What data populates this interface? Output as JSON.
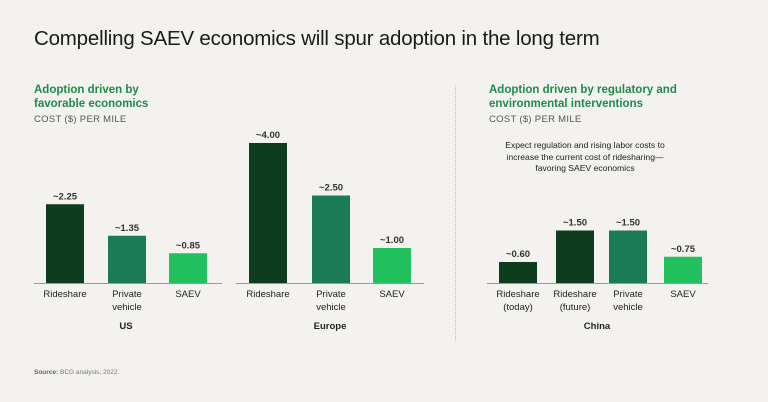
{
  "title": "Compelling SAEV economics will spur adoption in the long term",
  "panels": {
    "left": {
      "heading_line1": "Adoption driven by",
      "heading_line2": "favorable economics",
      "sublabel": "COST ($) PER MILE"
    },
    "right": {
      "heading_line1": "Adoption driven by regulatory and",
      "heading_line2": "environmental interventions",
      "sublabel": "COST ($) PER MILE",
      "annotation": "Expect regulation and rising labor costs to increase the current cost of ridesharing—favoring SAEV economics"
    }
  },
  "source_prefix": "Source:",
  "source_text": "BCG analysis, 2022.",
  "colors": {
    "dark_green": "#0e3c1e",
    "mid_green": "#1b7a57",
    "light_green": "#21c15d",
    "heading_green": "#1f8a4c"
  },
  "chart_data": [
    {
      "type": "bar",
      "group": "US",
      "ylabel": "COST ($) PER MILE",
      "categories": [
        [
          "Rideshare"
        ],
        [
          "Private",
          "vehicle"
        ],
        [
          "SAEV"
        ]
      ],
      "values": [
        2.25,
        1.35,
        0.85
      ],
      "value_labels": [
        "~2.25",
        "~1.35",
        "~0.85"
      ],
      "bar_colors": [
        "#0e3c1e",
        "#1b7a57",
        "#21c15d"
      ],
      "ylim": [
        0,
        4.0
      ]
    },
    {
      "type": "bar",
      "group": "Europe",
      "ylabel": "COST ($) PER MILE",
      "categories": [
        [
          "Rideshare"
        ],
        [
          "Private",
          "vehicle"
        ],
        [
          "SAEV"
        ]
      ],
      "values": [
        4.0,
        2.5,
        1.0
      ],
      "value_labels": [
        "~4.00",
        "~2.50",
        "~1.00"
      ],
      "bar_colors": [
        "#0e3c1e",
        "#1b7a57",
        "#21c15d"
      ],
      "ylim": [
        0,
        4.0
      ]
    },
    {
      "type": "bar",
      "group": "China",
      "ylabel": "COST ($) PER MILE",
      "categories": [
        [
          "Rideshare",
          "(today)"
        ],
        [
          "Rideshare",
          "(future)"
        ],
        [
          "Private",
          "vehicle"
        ],
        [
          "SAEV"
        ]
      ],
      "values": [
        0.6,
        1.5,
        1.5,
        0.75
      ],
      "value_labels": [
        "~0.60",
        "~1.50",
        "~1.50",
        "~0.75"
      ],
      "bar_colors": [
        "#0e3c1e",
        "#0e3c1e",
        "#1b7a57",
        "#21c15d"
      ],
      "ylim": [
        0,
        4.0
      ]
    }
  ]
}
